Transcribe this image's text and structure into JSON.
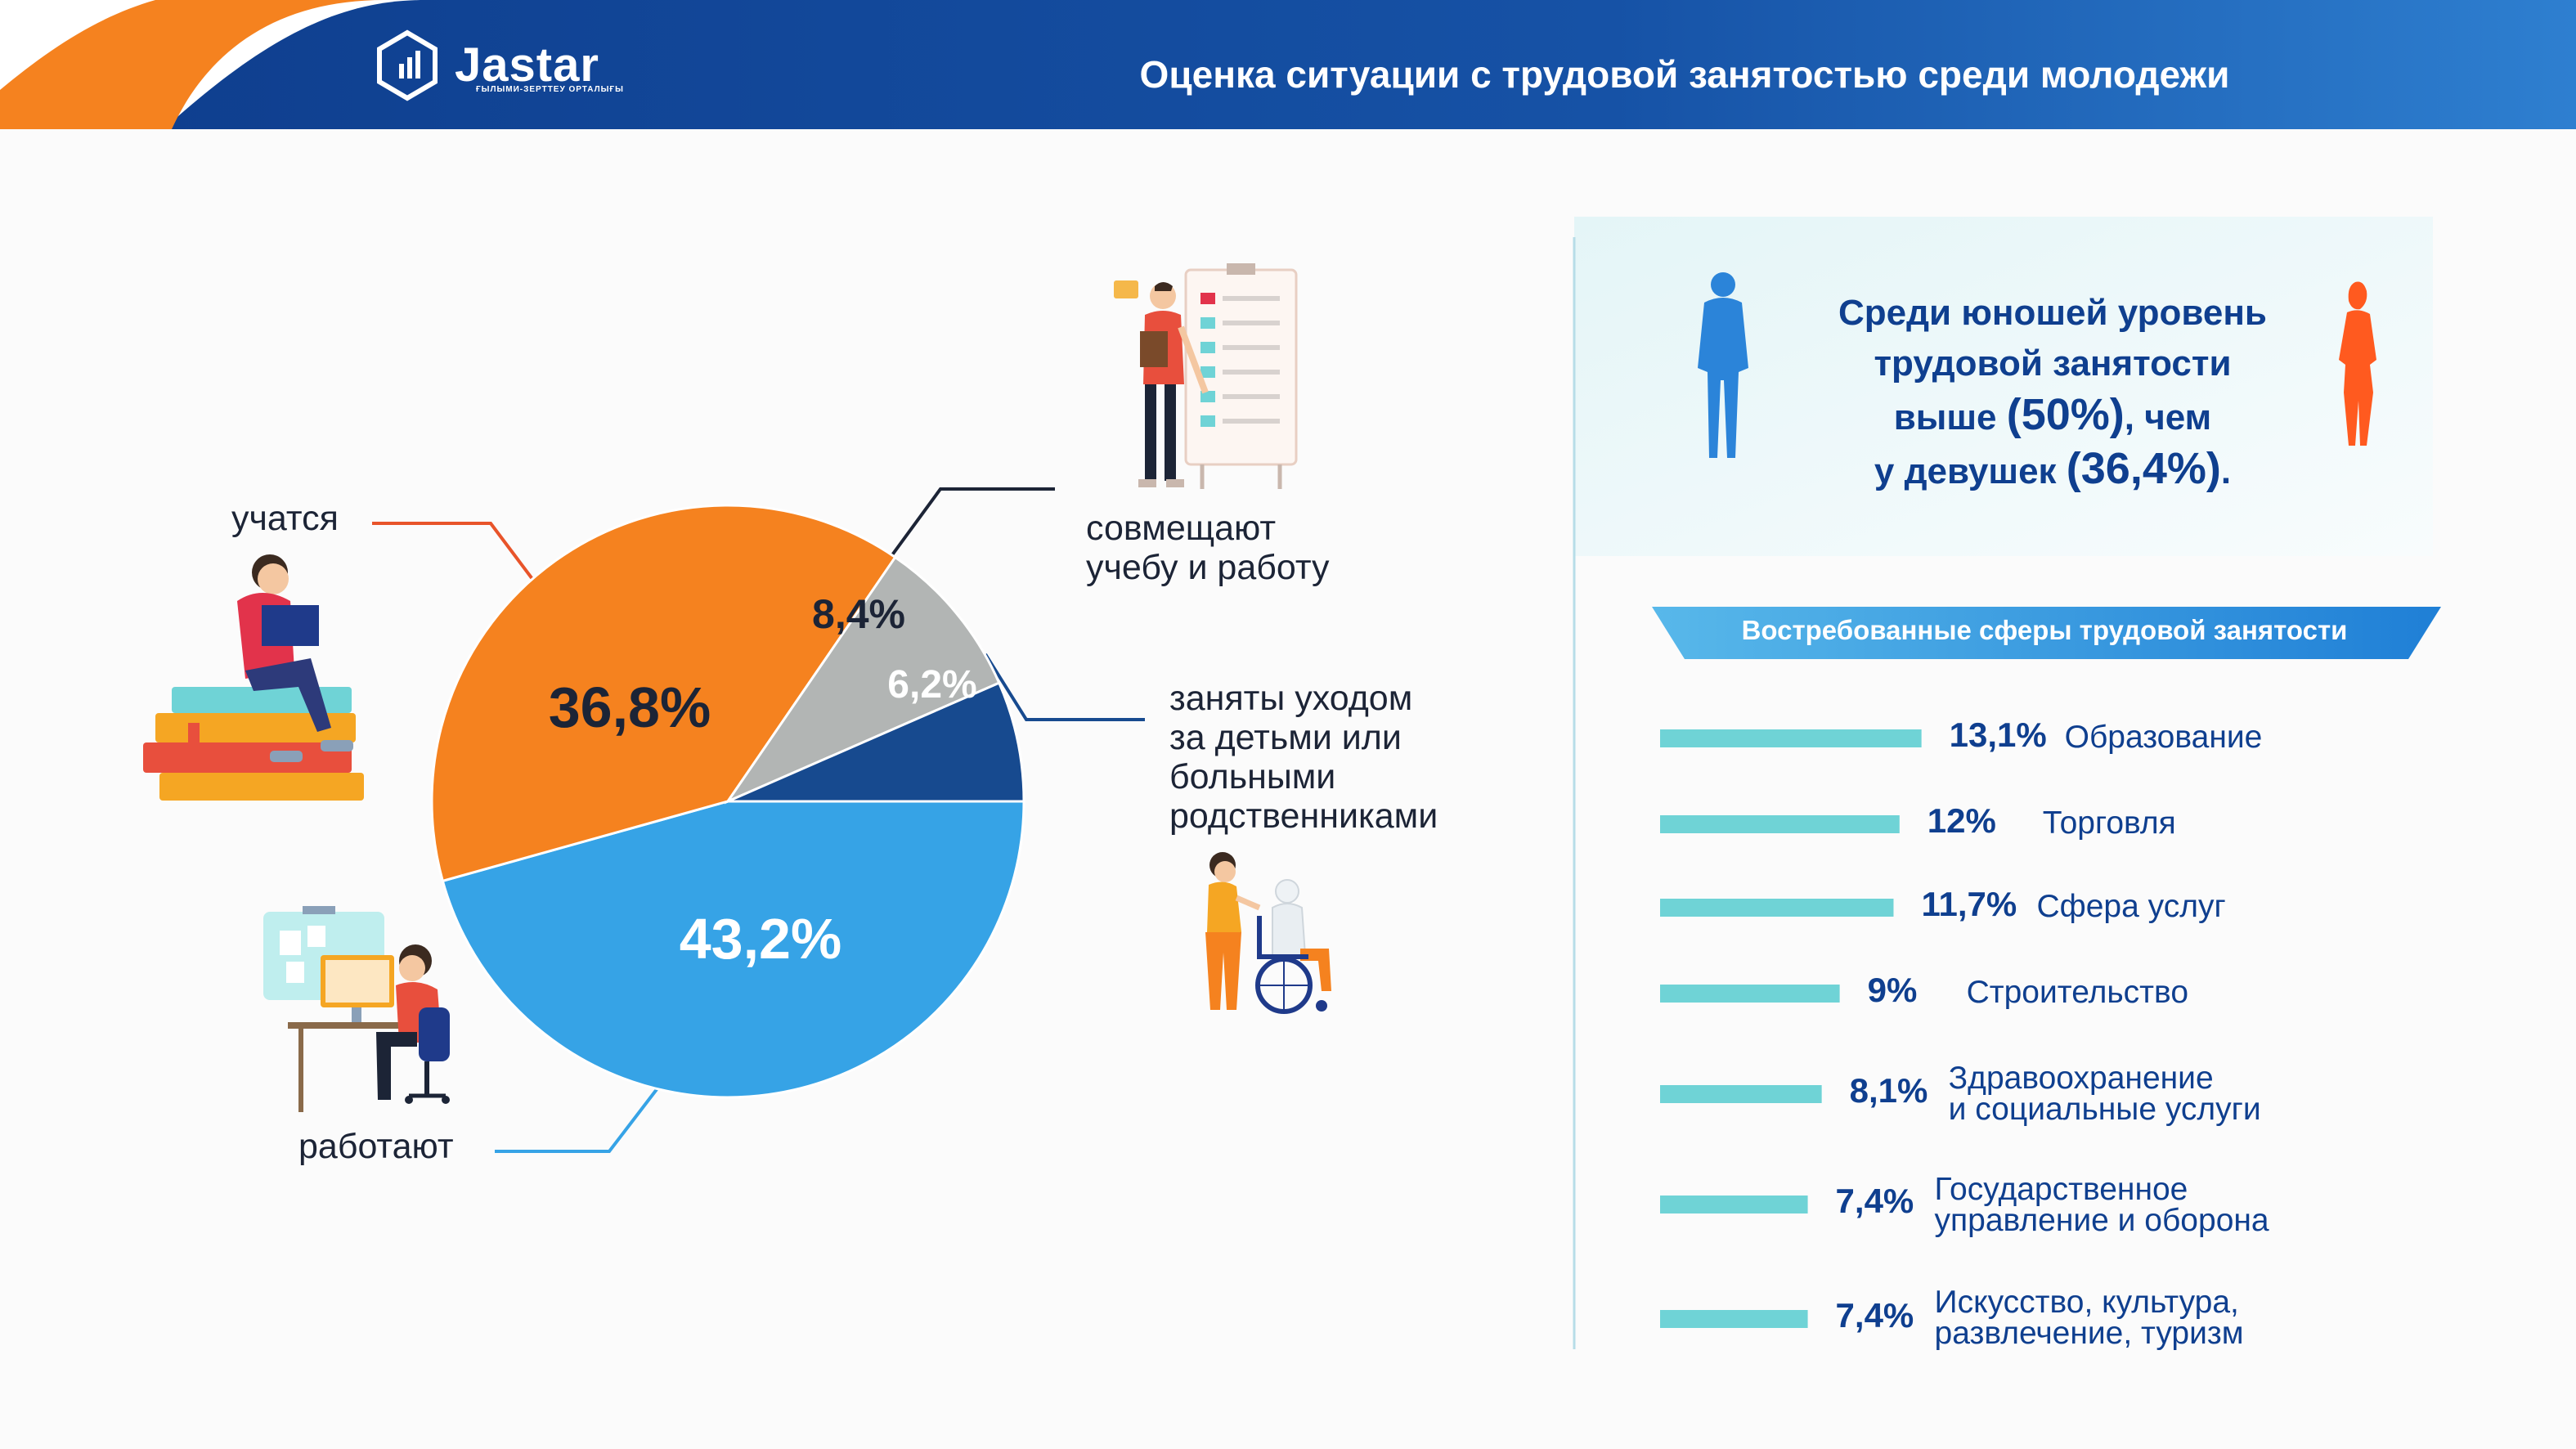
{
  "header": {
    "logo_name": "Jastar",
    "logo_subtitle": "ҒЫЛЫМИ-ЗЕРТТЕУ ОРТАЛЫҒЫ",
    "title": "Оценка ситуации с трудовой занятостью среди молодежи"
  },
  "colors": {
    "header_blue": "#0f3f8f",
    "accent_orange": "#f5821f",
    "pie_working": "#36a3e6",
    "pie_studying": "#f5821f",
    "pie_combining": "#b2b5b4",
    "pie_caregiving": "#174a8f",
    "bar_teal": "#6fd3d6",
    "text_navy": "#0f3f8f"
  },
  "icons": [
    "jastar-logo-icon",
    "male-figure-icon",
    "female-figure-icon",
    "student-reading-icon",
    "presenter-checklist-icon",
    "caregiver-wheelchair-icon",
    "office-worker-icon"
  ],
  "info_box": {
    "line1": "Среди юношей уровень",
    "line2": "трудовой занятости",
    "line3_pre": "выше ",
    "line3_value": "(50%)",
    "line3_post": ", чем",
    "line4_pre": "у девушек ",
    "line4_value": "(36,4%)",
    "line4_post": "."
  },
  "chart_data": [
    {
      "type": "pie",
      "slices": [
        {
          "label_lines": [
            "работают"
          ],
          "value": 43.2,
          "display": "43,2%",
          "color": "#36a3e6"
        },
        {
          "label_lines": [
            "учатся"
          ],
          "value": 36.8,
          "display": "36,8%",
          "color": "#f5821f"
        },
        {
          "label_lines": [
            "совмещают",
            "учебу и работу"
          ],
          "value": 8.4,
          "display": "8,4%",
          "color": "#b2b5b4"
        },
        {
          "label_lines": [
            "заняты уходом",
            "за детьми или",
            "больными",
            "родственниками"
          ],
          "value": 6.2,
          "display": "6,2%",
          "color": "#174a8f"
        }
      ]
    },
    {
      "type": "bar",
      "orientation": "horizontal",
      "title": "Востребованные сферы трудовой занятости",
      "categories": [
        "Образование",
        "Торговля",
        "Сфера услуг",
        "Строительство",
        "Здравоохранение\nи социальные услуги",
        "Государственное\nуправление и оборона",
        "Искусство, культура,\nразвлечение, туризм"
      ],
      "values": [
        13.1,
        12,
        11.7,
        9,
        8.1,
        7.4,
        7.4
      ],
      "value_labels": [
        "13,1%",
        "12%",
        "11,7%",
        "9%",
        "8,1%",
        "7,4%",
        "7,4%"
      ]
    }
  ]
}
